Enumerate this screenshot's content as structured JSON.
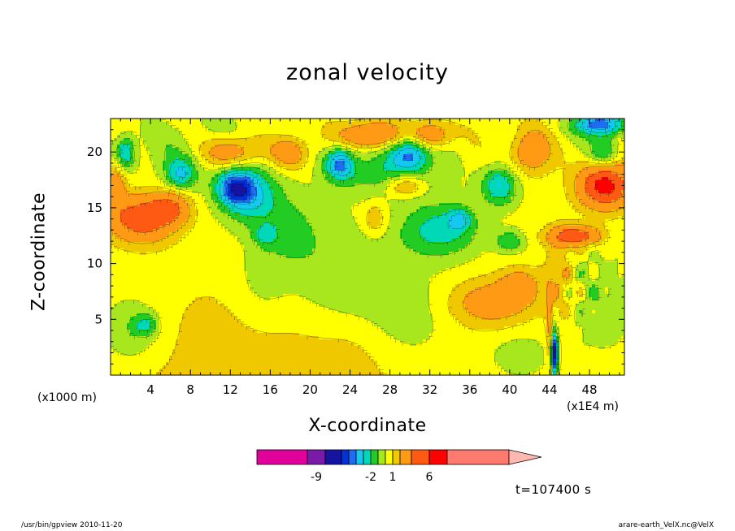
{
  "chart_data": {
    "type": "heatmap",
    "title": "zonal velocity",
    "xlabel": "X-coordinate",
    "ylabel": "Z-coordinate",
    "x_unit_label": "(x1000 m)",
    "x_scale_label": "(x1E4 m)",
    "xlim": [
      0,
      51.5
    ],
    "ylim": [
      0,
      23
    ],
    "x_ticks": [
      4,
      8,
      12,
      16,
      20,
      24,
      28,
      32,
      36,
      40,
      44,
      48
    ],
    "y_ticks": [
      5,
      10,
      15,
      20
    ],
    "time_label": "t=107400 s",
    "colorbar": {
      "labels": [
        {
          "text": "-9",
          "value": -9
        },
        {
          "text": "-2",
          "value": -2
        },
        {
          "text": "1",
          "value": 1
        },
        {
          "text": "6",
          "value": 6
        }
      ],
      "bins": [
        {
          "lo": -15,
          "hi": -10,
          "color": "#e0009a"
        },
        {
          "lo": -10,
          "hi": -8,
          "color": "#7a1aa8"
        },
        {
          "lo": -8,
          "hi": -6,
          "color": "#1414a0"
        },
        {
          "lo": -6,
          "hi": -5,
          "color": "#0032dc"
        },
        {
          "lo": -5,
          "hi": -4,
          "color": "#1e6cf0"
        },
        {
          "lo": -4,
          "hi": -3,
          "color": "#14c8f0"
        },
        {
          "lo": -3,
          "hi": -2,
          "color": "#00d8b8"
        },
        {
          "lo": -2,
          "hi": -1,
          "color": "#22cc22"
        },
        {
          "lo": -1,
          "hi": 0,
          "color": "#a8e61e"
        },
        {
          "lo": 0,
          "hi": 1,
          "color": "#ffff00"
        },
        {
          "lo": 1,
          "hi": 2,
          "color": "#f0c800"
        },
        {
          "lo": 2,
          "hi": 4,
          "color": "#ff9a14"
        },
        {
          "lo": 4,
          "hi": 6,
          "color": "#ff5a14"
        },
        {
          "lo": 6,
          "hi": 8,
          "color": "#ff0000"
        },
        {
          "lo": 8,
          "hi": 16,
          "color": "#ff7a6e"
        },
        {
          "lo": 16,
          "hi": 20,
          "color": "#ffb8b0"
        }
      ]
    }
  },
  "footer": {
    "left": "/usr/bin/gpview   2010-11-20",
    "right": "arare-earth_VelX.nc@VelX"
  }
}
